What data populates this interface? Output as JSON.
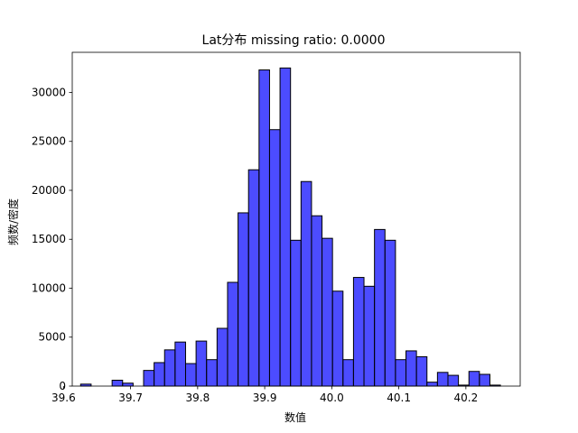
{
  "chart_data": {
    "type": "bar",
    "title": "Lat分布  missing ratio: 0.0000",
    "xlabel": "数值",
    "ylabel": "频数/密度",
    "xlim": [
      39.613,
      39.281
    ],
    "ylim": [
      0,
      34100
    ],
    "grid": false,
    "bar_color": "#0000ff",
    "bar_opacity": 0.7,
    "edge_color": "#000000",
    "x_ticks": [
      39.6,
      39.7,
      39.8,
      39.9,
      40.0,
      40.1,
      40.2
    ],
    "x_tick_labels": [
      "39.6",
      "39.7",
      "39.8",
      "39.9",
      "40.0",
      "40.1",
      "40.2"
    ],
    "y_ticks": [
      0,
      5000,
      10000,
      15000,
      20000,
      25000,
      30000
    ],
    "y_tick_labels": [
      "0",
      "5000",
      "10000",
      "15000",
      "20000",
      "25000",
      "30000"
    ],
    "bins": {
      "start": 39.6255,
      "width": 0.01565,
      "counts": [
        200,
        0,
        0,
        600,
        300,
        0,
        1600,
        2400,
        3700,
        4500,
        2300,
        4600,
        2700,
        5900,
        10600,
        17700,
        22100,
        32300,
        26200,
        32500,
        14900,
        20900,
        17400,
        15100,
        9700,
        2700,
        11100,
        10200,
        16000,
        14900,
        2700,
        3600,
        3000,
        400,
        1400,
        1100,
        100,
        1500,
        1200,
        100
      ]
    }
  }
}
